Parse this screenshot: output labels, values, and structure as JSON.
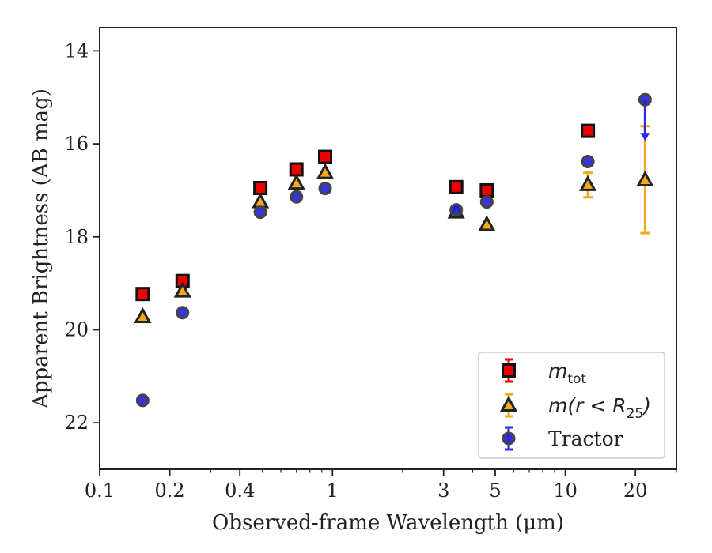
{
  "chart_data": {
    "type": "scatter",
    "xlabel": "Observed-frame Wavelength (μm)",
    "ylabel": "Apparent Brightness (AB mag)",
    "xscale": "log",
    "xlim": [
      0.1,
      30
    ],
    "ylim": [
      23,
      13.5
    ],
    "y_inverted": true,
    "xticks": [
      0.1,
      0.2,
      0.4,
      1,
      3,
      5,
      10,
      20
    ],
    "xtick_labels": [
      "0.1",
      "0.2",
      "0.4",
      "1",
      "3",
      "5",
      "10",
      "20"
    ],
    "yticks": [
      14,
      16,
      18,
      20,
      22
    ],
    "ytick_labels": [
      "14",
      "16",
      "18",
      "20",
      "22"
    ],
    "legend_position": "lower-right",
    "series": [
      {
        "name": "m_tot",
        "legend_main": "m",
        "legend_sub": "tot",
        "marker": "square",
        "color": "#ee0000",
        "edge": "#111111",
        "points": [
          {
            "x": 0.153,
            "y": 19.23
          },
          {
            "x": 0.227,
            "y": 18.95
          },
          {
            "x": 0.49,
            "y": 16.95
          },
          {
            "x": 0.7,
            "y": 16.55
          },
          {
            "x": 0.93,
            "y": 16.28
          },
          {
            "x": 3.4,
            "y": 16.93
          },
          {
            "x": 4.6,
            "y": 17.0
          },
          {
            "x": 12.5,
            "y": 15.72
          }
        ]
      },
      {
        "name": "m(r < R25)",
        "legend_main": "m(r < R",
        "legend_sub": "25",
        "legend_tail": ")",
        "marker": "triangle",
        "color": "#f5a81c",
        "edge": "#222222",
        "points": [
          {
            "x": 0.153,
            "y": 19.72
          },
          {
            "x": 0.227,
            "y": 19.17
          },
          {
            "x": 0.49,
            "y": 17.25
          },
          {
            "x": 0.7,
            "y": 16.85
          },
          {
            "x": 0.93,
            "y": 16.62
          },
          {
            "x": 3.4,
            "y": 17.47
          },
          {
            "x": 4.6,
            "y": 17.74
          },
          {
            "x": 12.5,
            "y": 16.88,
            "yerr": [
              16.62,
              17.15
            ]
          },
          {
            "x": 22.0,
            "y": 16.78,
            "yerr": [
              15.62,
              17.92
            ]
          }
        ]
      },
      {
        "name": "Tractor",
        "legend_main": "Tractor",
        "marker": "circle",
        "color": "#1f1fd8",
        "edge": "#444444",
        "points": [
          {
            "x": 0.153,
            "y": 21.52
          },
          {
            "x": 0.227,
            "y": 19.63
          },
          {
            "x": 0.49,
            "y": 17.47
          },
          {
            "x": 0.7,
            "y": 17.14
          },
          {
            "x": 0.93,
            "y": 16.96
          },
          {
            "x": 3.4,
            "y": 17.42
          },
          {
            "x": 4.6,
            "y": 17.25
          },
          {
            "x": 12.5,
            "y": 16.38
          },
          {
            "x": 22.0,
            "y": 15.05,
            "upper_limit_to": 15.9
          }
        ]
      }
    ]
  }
}
